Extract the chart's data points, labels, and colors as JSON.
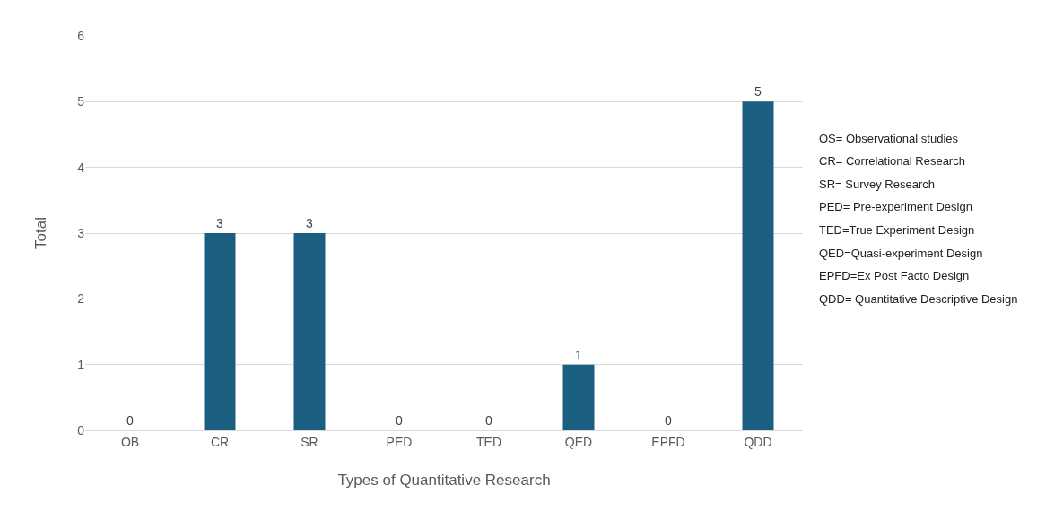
{
  "chart_data": {
    "type": "bar",
    "xlabel": "Types of Quantitative Research",
    "ylabel": "Total",
    "categories": [
      "OB",
      "CR",
      "SR",
      "PED",
      "TED",
      "QED",
      "EPFD",
      "QDD"
    ],
    "values": [
      0,
      3,
      3,
      0,
      0,
      1,
      0,
      5
    ],
    "color": "#1a5e80",
    "ylim": [
      0,
      6
    ],
    "yticks": [
      0,
      1,
      2,
      3,
      4,
      5,
      6
    ],
    "grid": "y",
    "data_labels": true,
    "legend": false,
    "annotations": [
      "OS= Observational studies",
      "CR= Correlational Research",
      "SR= Survey Research",
      "PED= Pre-experiment Design",
      "TED=True Experiment Design",
      "QED=Quasi-experiment Design",
      "EPFD=Ex Post Facto Design",
      "QDD= Quantitative Descriptive Design"
    ]
  }
}
